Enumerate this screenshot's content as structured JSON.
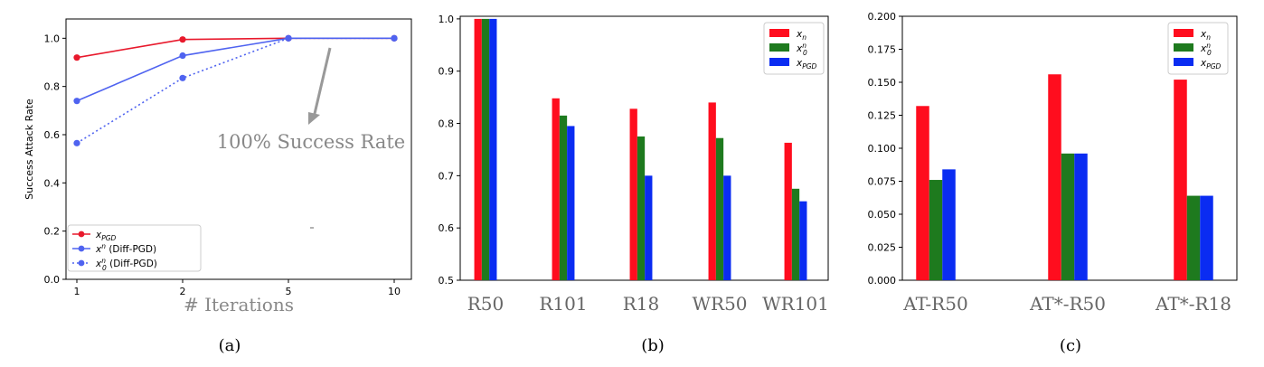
{
  "chart_data": [
    {
      "type": "line",
      "caption": "(a)",
      "xlabel": "# Iterations",
      "ylabel": "Success Attack Rate",
      "x": [
        1,
        2,
        5,
        10
      ],
      "x_ticks": [
        "1",
        "2",
        "5",
        "10"
      ],
      "y_ticks": [
        "0.0",
        "0.2",
        "0.4",
        "0.6",
        "0.8",
        "1.0"
      ],
      "ylim": [
        0,
        1.08
      ],
      "series": [
        {
          "name": "x_PGD",
          "label_main": "x",
          "label_sub": "PGD",
          "label_sup": "",
          "label_suffix": "",
          "color": "#e8192c",
          "style": "solid",
          "values": [
            0.92,
            0.995,
            1.0,
            1.0
          ]
        },
        {
          "name": "x^n (Diff-PGD)",
          "label_main": "x",
          "label_sub": "",
          "label_sup": "n",
          "label_suffix": " (Diff-PGD)",
          "color": "#4f63f0",
          "style": "solid",
          "values": [
            0.74,
            0.928,
            1.0,
            1.0
          ]
        },
        {
          "name": "x_0^n (Diff-PGD)",
          "label_main": "x",
          "label_sub": "0",
          "label_sup": "n",
          "label_suffix": " (Diff-PGD)",
          "color": "#4f63f0",
          "style": "dotted",
          "values": [
            0.565,
            0.835,
            1.0,
            1.0
          ]
        }
      ],
      "annotation": "100% Success Rate",
      "legend": "bottom-left",
      "grid": false
    },
    {
      "type": "bar",
      "caption": "(b)",
      "categories": [
        "R50",
        "R101",
        "R18",
        "WR50",
        "WR101"
      ],
      "y_ticks": [
        "0.5",
        "0.6",
        "0.7",
        "0.8",
        "0.9",
        "1.0"
      ],
      "ylim": [
        0.5,
        1.005
      ],
      "series": [
        {
          "name": "x_n",
          "label_main": "x",
          "label_sub": "n",
          "label_sup": "",
          "color": "#ff0d1e",
          "values": [
            1.0,
            0.848,
            0.828,
            0.84,
            0.763
          ]
        },
        {
          "name": "x_0^n",
          "label_main": "x",
          "label_sub": "0",
          "label_sup": "n",
          "color": "#1e7a1e",
          "values": [
            1.0,
            0.815,
            0.775,
            0.772,
            0.675
          ]
        },
        {
          "name": "x_PGD",
          "label_main": "x",
          "label_sub": "PGD",
          "label_sup": "",
          "color": "#0a2cf2",
          "values": [
            1.0,
            0.795,
            0.7,
            0.7,
            0.651
          ]
        }
      ],
      "legend": "top-right",
      "grid": false
    },
    {
      "type": "bar",
      "caption": "(c)",
      "categories": [
        "AT-R50",
        "AT*-R50",
        "AT*-R18"
      ],
      "y_ticks": [
        "0.000",
        "0.025",
        "0.050",
        "0.075",
        "0.100",
        "0.125",
        "0.150",
        "0.175",
        "0.200"
      ],
      "ylim": [
        0,
        0.2
      ],
      "series": [
        {
          "name": "x_n",
          "label_main": "x",
          "label_sub": "n",
          "label_sup": "",
          "color": "#ff0d1e",
          "values": [
            0.132,
            0.156,
            0.152
          ]
        },
        {
          "name": "x_0^n",
          "label_main": "x",
          "label_sub": "0",
          "label_sup": "n",
          "color": "#1e7a1e",
          "values": [
            0.076,
            0.096,
            0.064
          ]
        },
        {
          "name": "x_PGD",
          "label_main": "x",
          "label_sub": "PGD",
          "label_sup": "",
          "color": "#0a2cf2",
          "values": [
            0.084,
            0.096,
            0.064
          ]
        }
      ],
      "legend": "top-right",
      "grid": false
    }
  ]
}
